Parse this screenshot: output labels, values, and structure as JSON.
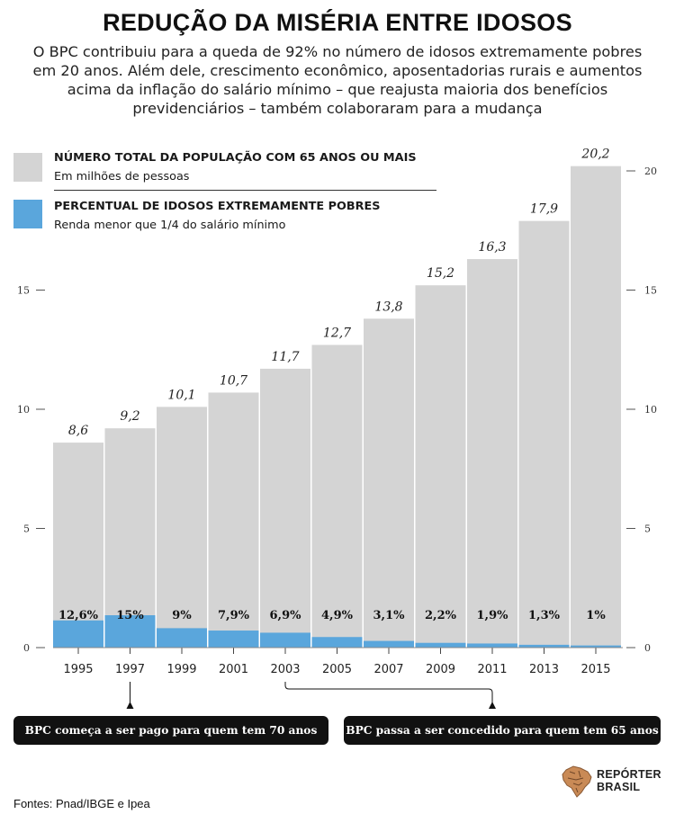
{
  "header": {
    "title": "REDUÇÃO DA MISÉRIA ENTRE IDOSOS",
    "subtitle": "O BPC contribuiu para a queda de 92% no número de idosos extremamente pobres em 20 anos. Além dele, crescimento econômico, aposentadorias rurais e aumentos acima da inflação do salário mínimo – que reajusta maioria dos benefícios previdenciários – também colaboraram para a mudança"
  },
  "legend": {
    "population": {
      "title": "NÚMERO TOTAL DA POPULAÇÃO COM 65 ANOS OU MAIS",
      "sub": "Em milhões de pessoas",
      "color": "#d4d4d4"
    },
    "poverty": {
      "title": "PERCENTUAL DE IDOSOS EXTREMAMENTE POBRES",
      "sub": "Renda menor que 1/4 do salário mínimo",
      "color": "#5aa6dc"
    }
  },
  "chart_data": {
    "type": "bar",
    "categories": [
      "1995",
      "1997",
      "1999",
      "2001",
      "2003",
      "2005",
      "2007",
      "2009",
      "2011",
      "2013",
      "2015"
    ],
    "series": [
      {
        "name": "Número total da população com 65 anos ou mais (milhões)",
        "values": [
          8.6,
          9.2,
          10.1,
          10.7,
          11.7,
          12.7,
          13.8,
          15.2,
          16.3,
          17.9,
          20.2
        ],
        "labels": [
          "8,6",
          "9,2",
          "10,1",
          "10,7",
          "11,7",
          "12,7",
          "13,8",
          "15,2",
          "16,3",
          "17,9",
          "20,2"
        ]
      },
      {
        "name": "Percentual de idosos extremamente pobres (%)",
        "values": [
          12.6,
          15,
          9,
          7.9,
          6.9,
          4.9,
          3.1,
          2.2,
          1.9,
          1.3,
          1
        ],
        "labels": [
          "12,6%",
          "15%",
          "9%",
          "7,9%",
          "6,9%",
          "4,9%",
          "3,1%",
          "2,2%",
          "1,9%",
          "1,3%",
          "1%"
        ]
      }
    ],
    "ylim": [
      0,
      20
    ],
    "yticks": [
      0,
      5,
      10,
      15,
      20
    ],
    "left_axis_ticks": [
      "0",
      "5",
      "10",
      "15"
    ],
    "right_axis_ticks": [
      "0",
      "5",
      "10",
      "15",
      "20"
    ]
  },
  "annotations": {
    "note_1997": "BPC começa a ser pago para quem tem 70 anos",
    "note_2003": "BPC passa a ser concedido para quem tem 65 anos"
  },
  "footer": {
    "sources": "Fontes: Pnad/IBGE e Ipea",
    "logo_line1": "REPÓRTER",
    "logo_line2": "BRASIL"
  }
}
